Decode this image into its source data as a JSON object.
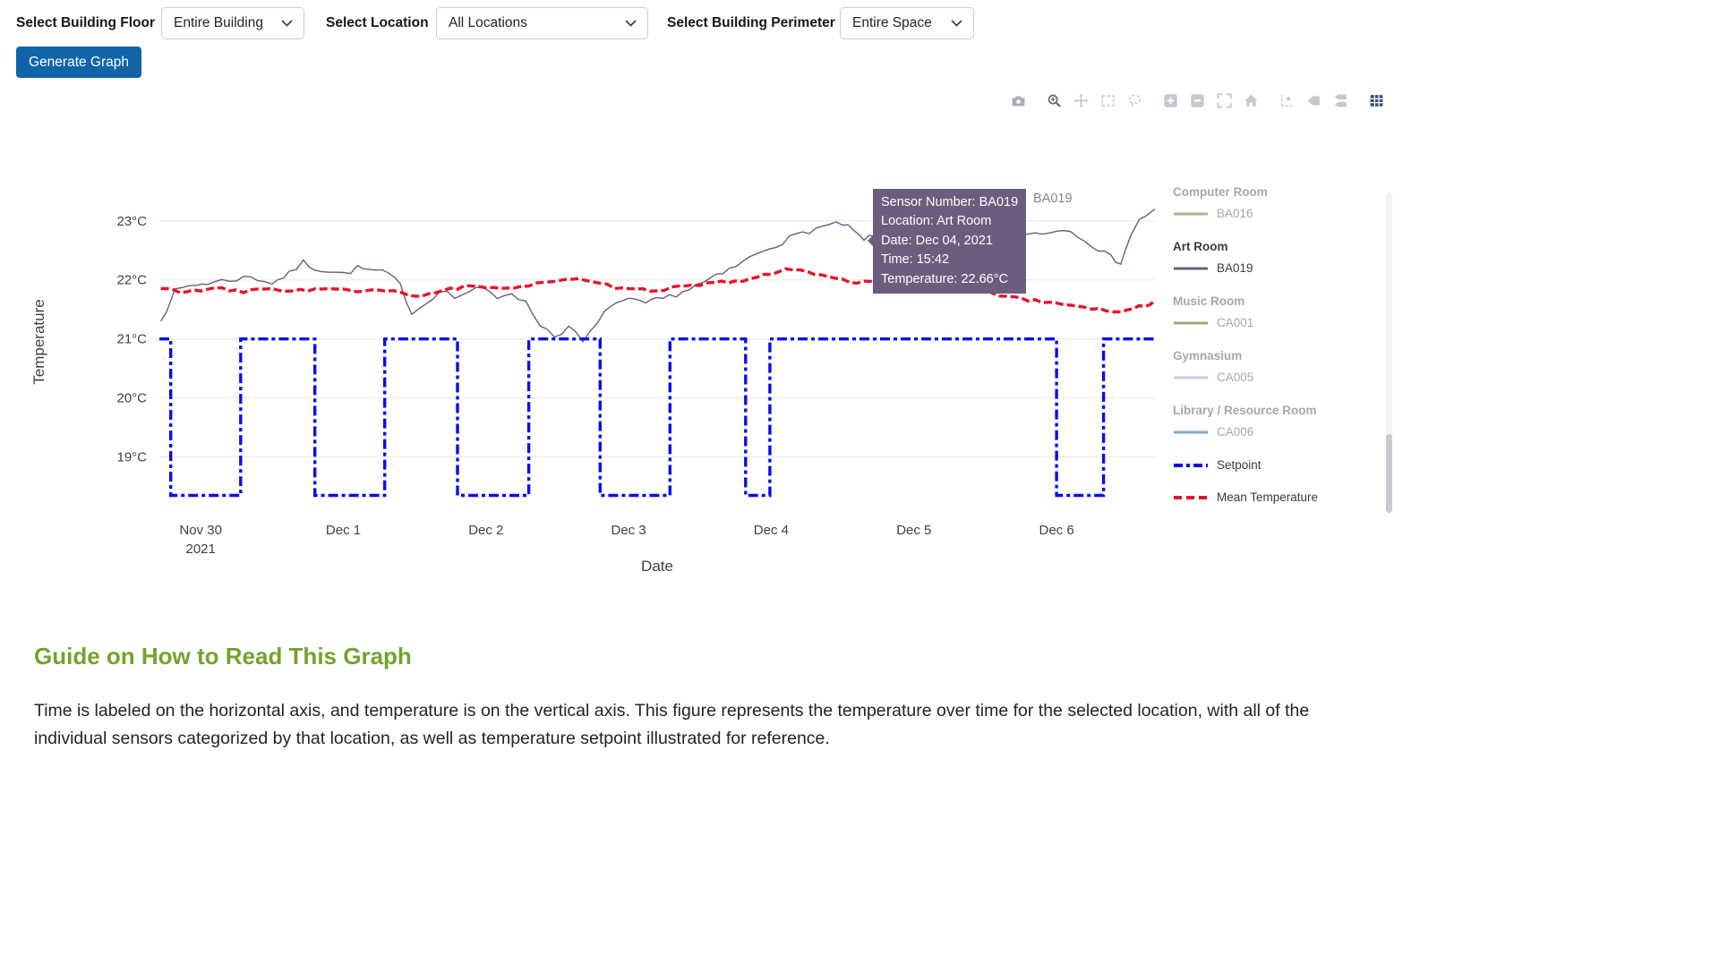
{
  "controls": {
    "floor_label": "Select Building Floor",
    "floor_value": "Entire Building",
    "location_label": "Select Location",
    "location_value": "All Locations",
    "perimeter_label": "Select Building Perimeter",
    "perimeter_value": "Entire Space",
    "generate_button": "Generate Graph"
  },
  "theme": {
    "primary_button": "#1164a8",
    "heading_green": "#73a32d",
    "tooltip_bg": "#6d5c7d"
  },
  "modebar": {
    "groups": [
      [
        "camera"
      ],
      [
        "zoom",
        "pan",
        "box-select",
        "lasso"
      ],
      [
        "zoom-in",
        "zoom-out",
        "autoscale",
        "reset-home"
      ],
      [
        "spikelines",
        "hover-closest",
        "hover-compare"
      ],
      [
        "plotly-logo"
      ]
    ],
    "active": "zoom"
  },
  "tooltip": {
    "lines": [
      "Sensor Number: BA019",
      "Location: Art Room",
      "Date: Dec 04, 2021",
      "Time: 15:42",
      "Temperature: 22.66°C"
    ],
    "trace_label": "BA019",
    "bg": "#6d5c7d"
  },
  "legend": {
    "groups": [
      {
        "title": "Computer Room",
        "sensor": "BA016",
        "color": "#b6ae87",
        "hidden": true
      },
      {
        "title": "Art Room",
        "sensor": "BA019",
        "color": "#6d5c7e",
        "hidden": false
      },
      {
        "title": "Music Room",
        "sensor": "CA001",
        "color": "#a4a478",
        "hidden": true
      },
      {
        "title": "Gymnasium",
        "sensor": "CA005",
        "color": "#c2cfe2",
        "hidden": true
      },
      {
        "title": "Library / Resource Room",
        "sensor": "CA006",
        "color": "#7ea9cd",
        "hidden": true
      }
    ],
    "extra": [
      {
        "label": "Setpoint",
        "color": "#0b0bf0",
        "dash": "dashdot"
      },
      {
        "label": "Mean Temperature",
        "color": "#e8132a",
        "dash": "dash"
      }
    ]
  },
  "chart_data": {
    "type": "line",
    "title": "",
    "xlabel": "Date",
    "ylabel": "Temperature",
    "x_range": [
      -0.29,
      6.69
    ],
    "y_range": [
      18.1,
      23.8
    ],
    "grid": true,
    "legend_position": "right",
    "y_ticks": [
      {
        "v": 19,
        "label": "19°C"
      },
      {
        "v": 20,
        "label": "20°C"
      },
      {
        "v": 21,
        "label": "21°C"
      },
      {
        "v": 22,
        "label": "22°C"
      },
      {
        "v": 23,
        "label": "23°C"
      }
    ],
    "x_ticks": [
      {
        "t": 0,
        "label": "Nov 30",
        "sublabel": "2021"
      },
      {
        "t": 1,
        "label": "Dec 1"
      },
      {
        "t": 2,
        "label": "Dec 2"
      },
      {
        "t": 3,
        "label": "Dec 3"
      },
      {
        "t": 4,
        "label": "Dec 4"
      },
      {
        "t": 5,
        "label": "Dec 5"
      },
      {
        "t": 6,
        "label": "Dec 6"
      }
    ],
    "hover_point": {
      "t": 4.65,
      "v": 22.66,
      "series": "BA019"
    },
    "series": [
      {
        "name": "BA019",
        "group": "Art Room",
        "color": "#6d5c7e",
        "width": 1.4,
        "dash": "solid",
        "noise": 0.05,
        "points": [
          [
            -0.28,
            21.35
          ],
          [
            -0.24,
            21.5
          ],
          [
            -0.18,
            21.8
          ],
          [
            -0.08,
            21.9
          ],
          [
            0.05,
            21.95
          ],
          [
            0.2,
            22.0
          ],
          [
            0.35,
            22.05
          ],
          [
            0.5,
            21.95
          ],
          [
            0.62,
            22.1
          ],
          [
            0.72,
            22.3
          ],
          [
            0.8,
            22.2
          ],
          [
            0.9,
            22.15
          ],
          [
            1.0,
            22.1
          ],
          [
            1.1,
            22.2
          ],
          [
            1.22,
            22.15
          ],
          [
            1.32,
            22.1
          ],
          [
            1.4,
            21.9
          ],
          [
            1.48,
            21.45
          ],
          [
            1.58,
            21.6
          ],
          [
            1.68,
            21.85
          ],
          [
            1.78,
            21.7
          ],
          [
            1.88,
            21.8
          ],
          [
            1.98,
            21.85
          ],
          [
            2.08,
            21.7
          ],
          [
            2.18,
            21.8
          ],
          [
            2.28,
            21.6
          ],
          [
            2.38,
            21.25
          ],
          [
            2.48,
            21.05
          ],
          [
            2.58,
            21.2
          ],
          [
            2.68,
            20.95
          ],
          [
            2.78,
            21.25
          ],
          [
            2.88,
            21.6
          ],
          [
            3.0,
            21.65
          ],
          [
            3.12,
            21.6
          ],
          [
            3.24,
            21.68
          ],
          [
            3.38,
            21.8
          ],
          [
            3.52,
            21.95
          ],
          [
            3.66,
            22.1
          ],
          [
            3.8,
            22.3
          ],
          [
            3.94,
            22.5
          ],
          [
            4.08,
            22.65
          ],
          [
            4.22,
            22.8
          ],
          [
            4.36,
            22.9
          ],
          [
            4.5,
            22.95
          ],
          [
            4.58,
            22.82
          ],
          [
            4.65,
            22.66
          ],
          [
            4.72,
            22.78
          ],
          [
            4.82,
            22.48
          ],
          [
            4.92,
            22.6
          ],
          [
            5.05,
            22.72
          ],
          [
            5.2,
            22.78
          ],
          [
            5.4,
            22.82
          ],
          [
            5.6,
            22.72
          ],
          [
            5.8,
            22.78
          ],
          [
            5.95,
            22.82
          ],
          [
            6.1,
            22.85
          ],
          [
            6.25,
            22.6
          ],
          [
            6.38,
            22.38
          ],
          [
            6.45,
            22.3
          ],
          [
            6.52,
            22.75
          ],
          [
            6.58,
            23.0
          ],
          [
            6.63,
            23.1
          ],
          [
            6.69,
            23.2
          ]
        ]
      },
      {
        "name": "Setpoint",
        "color": "#0b0bf0",
        "width": 3.4,
        "dash": "dashdot",
        "noise": 0,
        "points": [
          [
            -0.29,
            21
          ],
          [
            -0.21,
            21
          ],
          [
            -0.21,
            18.35
          ],
          [
            0.28,
            18.35
          ],
          [
            0.28,
            21
          ],
          [
            0.8,
            21
          ],
          [
            0.8,
            18.35
          ],
          [
            1.29,
            18.35
          ],
          [
            1.29,
            21
          ],
          [
            1.8,
            21
          ],
          [
            1.8,
            18.35
          ],
          [
            2.3,
            18.35
          ],
          [
            2.3,
            21
          ],
          [
            2.8,
            21
          ],
          [
            2.8,
            18.35
          ],
          [
            3.29,
            18.35
          ],
          [
            3.29,
            21
          ],
          [
            3.82,
            21
          ],
          [
            3.82,
            18.35
          ],
          [
            3.99,
            18.35
          ],
          [
            3.99,
            21
          ],
          [
            6.0,
            21
          ],
          [
            6.0,
            18.35
          ],
          [
            6.33,
            18.35
          ],
          [
            6.33,
            21
          ],
          [
            6.69,
            21
          ]
        ]
      },
      {
        "name": "Mean Temperature",
        "color": "#e8132a",
        "width": 3.4,
        "dash": "dash",
        "noise": 0.03,
        "points": [
          [
            -0.28,
            21.85
          ],
          [
            -0.1,
            21.8
          ],
          [
            0.1,
            21.85
          ],
          [
            0.3,
            21.8
          ],
          [
            0.5,
            21.85
          ],
          [
            0.7,
            21.82
          ],
          [
            0.9,
            21.85
          ],
          [
            1.1,
            21.8
          ],
          [
            1.3,
            21.82
          ],
          [
            1.5,
            21.72
          ],
          [
            1.65,
            21.8
          ],
          [
            1.85,
            21.88
          ],
          [
            2.05,
            21.85
          ],
          [
            2.25,
            21.9
          ],
          [
            2.45,
            21.98
          ],
          [
            2.65,
            22.0
          ],
          [
            2.85,
            21.9
          ],
          [
            3.05,
            21.82
          ],
          [
            3.25,
            21.85
          ],
          [
            3.45,
            21.9
          ],
          [
            3.65,
            21.95
          ],
          [
            3.85,
            22.02
          ],
          [
            4.0,
            22.1
          ],
          [
            4.15,
            22.2
          ],
          [
            4.3,
            22.12
          ],
          [
            4.45,
            22.0
          ],
          [
            4.6,
            21.96
          ],
          [
            4.8,
            21.95
          ],
          [
            5.0,
            21.96
          ],
          [
            5.2,
            21.95
          ],
          [
            5.4,
            21.88
          ],
          [
            5.6,
            21.75
          ],
          [
            5.8,
            21.65
          ],
          [
            6.0,
            21.6
          ],
          [
            6.2,
            21.55
          ],
          [
            6.35,
            21.46
          ],
          [
            6.5,
            21.5
          ],
          [
            6.62,
            21.56
          ],
          [
            6.69,
            21.65
          ]
        ]
      }
    ]
  },
  "guide": {
    "title": "Guide on How to Read This Graph",
    "body": "Time is labeled on the horizontal axis, and temperature is on the vertical axis. This figure represents the temperature over time for the selected location, with all of the individual sensors categorized by that location, as well as temperature setpoint illustrated for reference."
  }
}
